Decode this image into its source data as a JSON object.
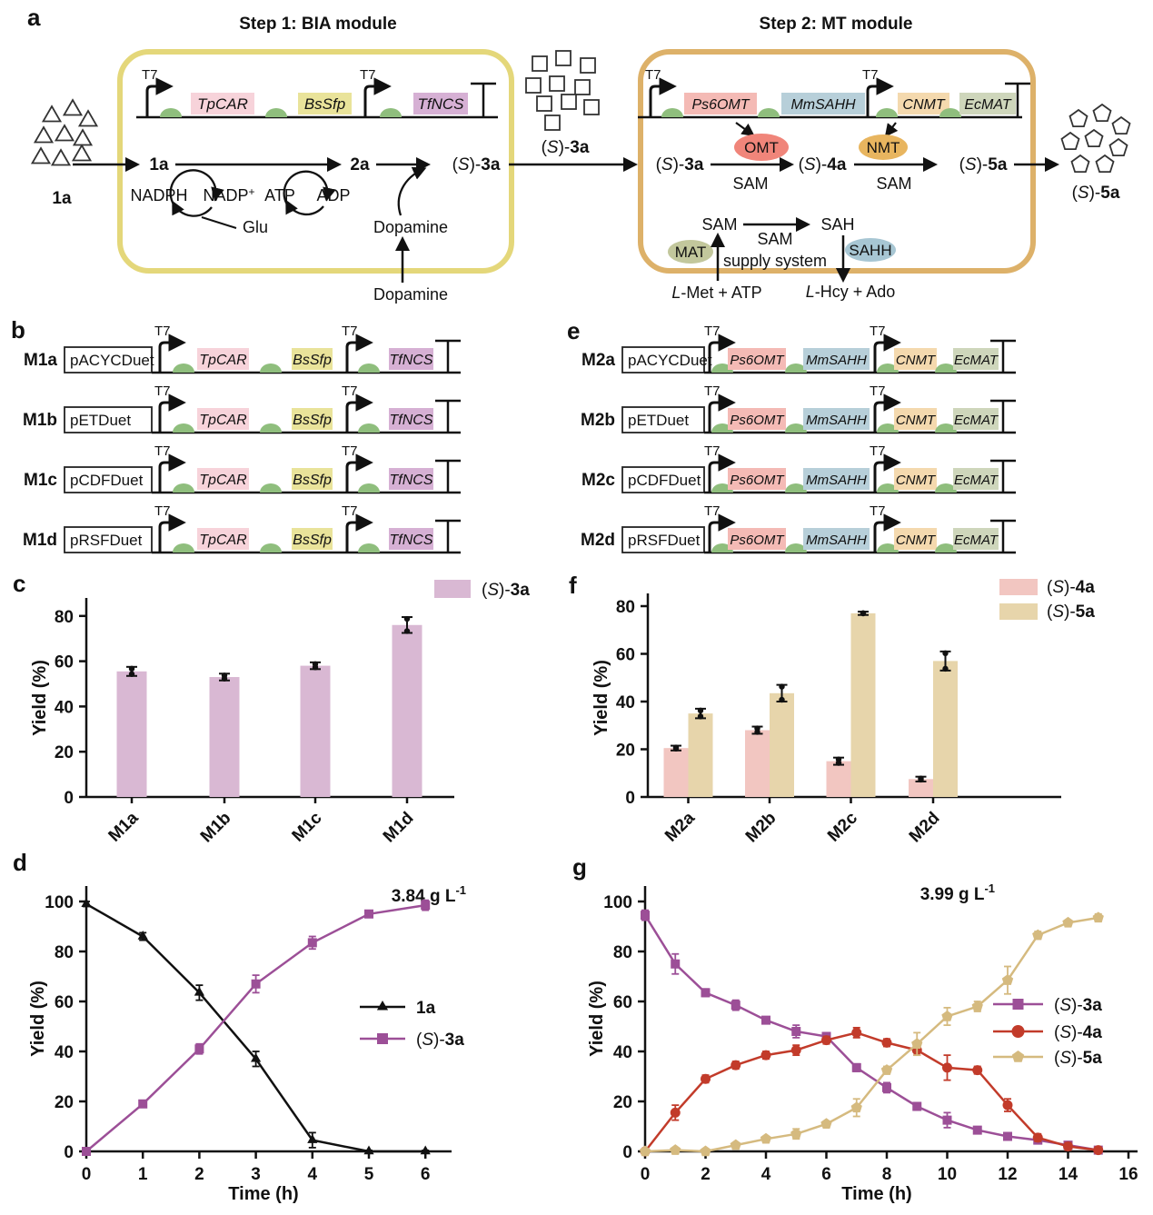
{
  "figure": {
    "panel_labels": {
      "a": "a",
      "b": "b",
      "c": "c",
      "d": "d",
      "e": "e",
      "f": "f",
      "g": "g"
    }
  },
  "colors": {
    "ink": "#111111",
    "bia_box_border": "#e4d77a",
    "mt_box_border": "#ddb169",
    "rbs_green": "#8fbe7d",
    "omt_ellipse": "#f0857a",
    "nmt_ellipse": "#e8b55f",
    "mat_ellipse": "#c2c79c",
    "sahh_ellipse": "#a7c6d3",
    "bar_c": "#d9b8d3",
    "bar_f_4a": "#f2c6c1",
    "bar_f_5a": "#e7d5ab",
    "line_purple": "#9c4f97",
    "line_red": "#c23b2a",
    "line_tan": "#d5ba7f",
    "line_black": "#111111"
  },
  "panel_a": {
    "step1_title": "Step 1: BIA module",
    "step2_title": "Step 2: MT module",
    "promoter_label": "T7",
    "bia_genes": [
      {
        "name": "TpCAR",
        "color": "#f7d3da"
      },
      {
        "name": "BsSfp",
        "color": "#e9e39a"
      },
      {
        "name": "TfNCS",
        "color": "#d6b0d4"
      }
    ],
    "mt_genes": [
      {
        "name": "Ps6OMT",
        "color": "#f4bab5"
      },
      {
        "name": "MmSAHH",
        "color": "#b7cfd9"
      },
      {
        "name": "CNMT",
        "color": "#f4d9ae"
      },
      {
        "name": "EcMAT",
        "color": "#ced6bb"
      }
    ],
    "substrate_label": "1a",
    "intermediate_label": "(S)-3a",
    "product_label": "(S)-5a",
    "bia_pathway": {
      "m1": "1a",
      "m2": "2a",
      "m3": "(S)-3a",
      "cof1": "NADPH",
      "cof2": "NADP",
      "cof2_sup": "+",
      "cof3": "ATP",
      "cof4": "ADP",
      "glu": "Glu",
      "dopamine_inner": "Dopamine",
      "dopamine_outer": "Dopamine"
    },
    "mt_pathway": {
      "m1": "(S)-3a",
      "m2": "(S)-4a",
      "m3": "(S)-5a",
      "omt": "OMT",
      "nmt": "NMT",
      "sam1": "SAM",
      "sam2": "SAM",
      "sam_left": "SAM",
      "sah_right": "SAH",
      "supply1": "SAM",
      "supply2": "supply system",
      "mat": "MAT",
      "sahh": "SAHH",
      "lmet": "L-Met + ATP",
      "lhcy": "L-Hcy + Ado"
    }
  },
  "panel_b": {
    "rows": [
      {
        "name": "M1a",
        "vector": "pACYCDuet"
      },
      {
        "name": "M1b",
        "vector": "pETDuet"
      },
      {
        "name": "M1c",
        "vector": "pCDFDuet"
      },
      {
        "name": "M1d",
        "vector": "pRSFDuet"
      }
    ]
  },
  "panel_e": {
    "rows": [
      {
        "name": "M2a",
        "vector": "pACYCDuet"
      },
      {
        "name": "M2b",
        "vector": "pETDuet"
      },
      {
        "name": "M2c",
        "vector": "pCDFDuet"
      },
      {
        "name": "M2d",
        "vector": "pRSFDuet"
      }
    ]
  },
  "chart_data": [
    {
      "id": "c",
      "type": "bar",
      "title": "",
      "xlabel": "",
      "ylabel": "Yield (%)",
      "ylim": [
        0,
        88
      ],
      "yticks": [
        0,
        20,
        40,
        60,
        80
      ],
      "categories": [
        "M1a",
        "M1b",
        "M1c",
        "M1d"
      ],
      "series": [
        {
          "name": "(S)-3a",
          "color": "#d9b8d3",
          "values": [
            55.5,
            53,
            58,
            76
          ],
          "errors": [
            2,
            1.5,
            1.5,
            3.5
          ]
        }
      ],
      "legend_position": "top-right",
      "grid": false
    },
    {
      "id": "f",
      "type": "bar",
      "title": "",
      "xlabel": "",
      "ylabel": "Yield (%)",
      "ylim": [
        0,
        85
      ],
      "yticks": [
        0,
        20,
        40,
        60,
        80
      ],
      "categories": [
        "M2a",
        "M2b",
        "M2c",
        "M2d"
      ],
      "series": [
        {
          "name": "(S)-4a",
          "color": "#f2c6c1",
          "values": [
            20.5,
            28,
            15,
            7.5
          ],
          "errors": [
            1,
            1.5,
            1.5,
            1
          ]
        },
        {
          "name": "(S)-5a",
          "color": "#e7d5ab",
          "values": [
            35,
            43.5,
            77,
            57
          ],
          "errors": [
            2,
            3.5,
            0.7,
            4
          ]
        }
      ],
      "legend_position": "top-right",
      "grid": false
    },
    {
      "id": "d",
      "type": "line",
      "title": "",
      "xlabel": "Time (h)",
      "ylabel": "Yield (%)",
      "xlim": [
        0,
        6.45
      ],
      "ylim": [
        0,
        106
      ],
      "xticks": [
        0,
        1,
        2,
        3,
        4,
        5,
        6
      ],
      "yticks": [
        0,
        20,
        40,
        60,
        80,
        100
      ],
      "annotation": {
        "text": "3.84 g L",
        "sup": "-1"
      },
      "x": [
        0,
        1,
        2,
        3,
        4,
        5,
        6
      ],
      "series": [
        {
          "name": "1a",
          "color": "#111111",
          "marker": "triangle",
          "values": [
            99,
            86,
            63.5,
            37,
            4.5,
            0,
            0
          ],
          "errors": [
            1,
            1.5,
            3,
            3,
            3,
            0.4,
            0.4
          ]
        },
        {
          "name": "(S)-3a",
          "color": "#9c4f97",
          "marker": "square",
          "values": [
            0,
            19,
            41,
            67,
            83.5,
            95,
            98.5
          ],
          "errors": [
            0.5,
            1,
            2,
            3.5,
            2.5,
            1,
            2
          ]
        }
      ],
      "legend_position": "center-right",
      "grid": false
    },
    {
      "id": "g",
      "type": "line",
      "title": "",
      "xlabel": "Time (h)",
      "ylabel": "Yield (%)",
      "xlim": [
        0,
        16.3
      ],
      "ylim": [
        0,
        106
      ],
      "xticks": [
        0,
        2,
        4,
        6,
        8,
        10,
        12,
        14,
        16
      ],
      "yticks": [
        0,
        20,
        40,
        60,
        80,
        100
      ],
      "annotation": {
        "text": "3.99 g L",
        "sup": "-1"
      },
      "x": [
        0,
        1,
        2,
        3,
        4,
        5,
        6,
        7,
        8,
        9,
        10,
        11,
        12,
        13,
        14,
        15
      ],
      "series": [
        {
          "name": "(S)-3a",
          "color": "#9c4f97",
          "marker": "square",
          "values": [
            94.5,
            75,
            63.5,
            58.5,
            52.5,
            48,
            46,
            33.5,
            25.5,
            18,
            12.5,
            8.5,
            6,
            4.5,
            2.5,
            0.5
          ],
          "errors": [
            2,
            4,
            1.5,
            2,
            1,
            2.5,
            1.5,
            1.5,
            2,
            1.5,
            3,
            1,
            1,
            1,
            1,
            0.4
          ]
        },
        {
          "name": "(S)-4a",
          "color": "#c23b2a",
          "marker": "circle",
          "values": [
            0,
            15.5,
            29,
            34.5,
            38.5,
            40.5,
            44.5,
            47.5,
            43.5,
            40.5,
            33.5,
            32.5,
            18.5,
            5.5,
            2,
            0.5
          ],
          "errors": [
            0.3,
            3,
            1.5,
            1.5,
            1.5,
            2,
            1.5,
            2,
            1.5,
            2,
            5,
            1.5,
            2.5,
            1.5,
            1.5,
            0.4
          ]
        },
        {
          "name": "(S)-5a",
          "color": "#d5ba7f",
          "marker": "pentagon",
          "values": [
            0,
            0.5,
            0,
            2.5,
            5,
            7,
            11,
            17.5,
            32.5,
            43,
            54,
            58,
            68.5,
            86.5,
            91.5,
            93.5
          ],
          "errors": [
            0.2,
            0.4,
            0.4,
            1,
            1,
            2,
            1,
            3.5,
            1.5,
            4.5,
            3.5,
            2,
            5.5,
            1.5,
            1,
            1.5
          ]
        }
      ],
      "legend_position": "center-right",
      "grid": false
    }
  ]
}
